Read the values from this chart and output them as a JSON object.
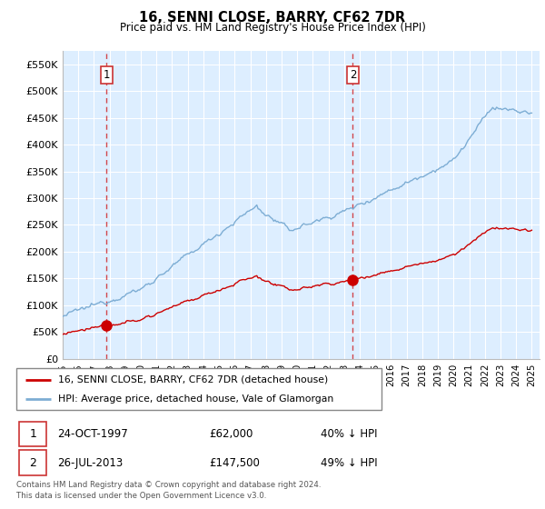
{
  "title": "16, SENNI CLOSE, BARRY, CF62 7DR",
  "subtitle": "Price paid vs. HM Land Registry's House Price Index (HPI)",
  "ylabel_ticks": [
    "£0",
    "£50K",
    "£100K",
    "£150K",
    "£200K",
    "£250K",
    "£300K",
    "£350K",
    "£400K",
    "£450K",
    "£500K",
    "£550K"
  ],
  "ylim_max": 575000,
  "xlim_start": 1995.0,
  "xlim_end": 2025.5,
  "sale1_date": 1997.81,
  "sale1_price": 62000,
  "sale2_date": 2013.56,
  "sale2_price": 147500,
  "legend_line1": "16, SENNI CLOSE, BARRY, CF62 7DR (detached house)",
  "legend_line2": "HPI: Average price, detached house, Vale of Glamorgan",
  "footnote1": "Contains HM Land Registry data © Crown copyright and database right 2024.",
  "footnote2": "This data is licensed under the Open Government Licence v3.0.",
  "red_color": "#cc0000",
  "blue_color": "#7dadd4",
  "bg_color": "#ddeeff",
  "grid_color": "#ffffff",
  "box_color": "#cc3333"
}
